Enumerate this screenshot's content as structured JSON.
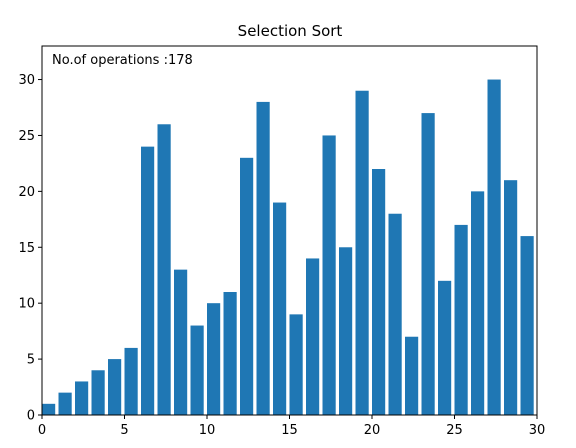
{
  "chart_data": {
    "type": "bar",
    "title": "Selection Sort",
    "annotation": "No.of operations :178",
    "x": [
      0,
      1,
      2,
      3,
      4,
      5,
      6,
      7,
      8,
      9,
      10,
      11,
      12,
      13,
      14,
      15,
      16,
      17,
      18,
      19,
      20,
      21,
      22,
      23,
      24,
      25,
      26,
      27,
      28,
      29
    ],
    "values": [
      1,
      2,
      3,
      4,
      5,
      6,
      24,
      26,
      13,
      8,
      10,
      11,
      23,
      28,
      19,
      9,
      14,
      25,
      15,
      29,
      22,
      18,
      7,
      27,
      12,
      17,
      20,
      30,
      21,
      16
    ],
    "bar_width": 0.8,
    "align": "edge",
    "color": "#1f77b4",
    "xlim": [
      0,
      30
    ],
    "xticks": [
      0,
      5,
      10,
      15,
      20,
      25,
      30
    ],
    "ylim": [
      0,
      33
    ],
    "yticks": [
      0,
      5,
      10,
      15,
      20,
      25,
      30
    ],
    "grid": false
  }
}
